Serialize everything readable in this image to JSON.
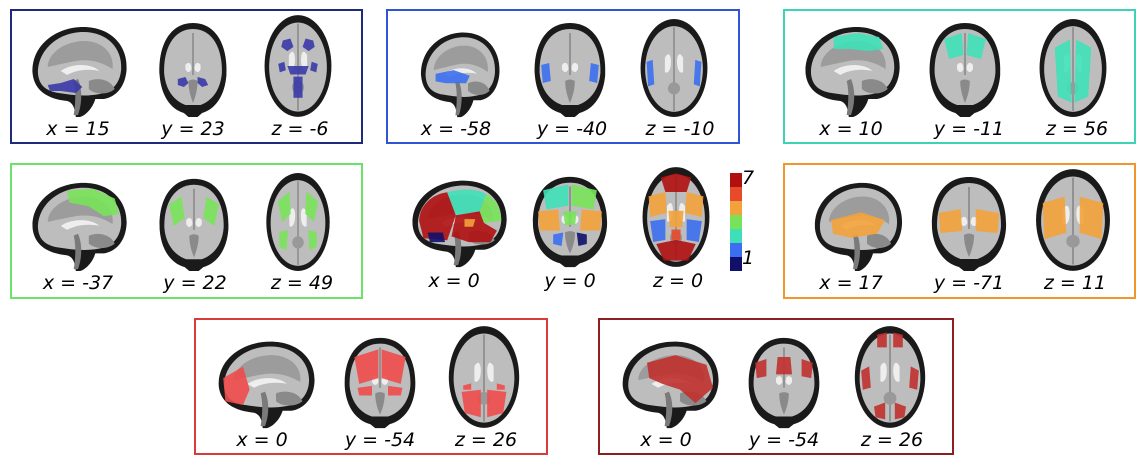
{
  "networks": [
    {
      "id": "n1",
      "color": "#1f2a7a",
      "blob": "#3a3aa8",
      "labels": [
        "x = 15",
        "y = 23",
        "z = -6"
      ]
    },
    {
      "id": "n2",
      "color": "#2f55d4",
      "blob": "#3b6ef0",
      "labels": [
        "x = -58",
        "y = -40",
        "z = -10"
      ]
    },
    {
      "id": "n3",
      "color": "#3fd3b5",
      "blob": "#3fe0b8",
      "labels": [
        "x = 10",
        "y = -11",
        "z = 56"
      ]
    },
    {
      "id": "n4",
      "color": "#6be36b",
      "blob": "#78e35a",
      "labels": [
        "x = -37",
        "y = 22",
        "z = 49"
      ]
    },
    {
      "id": "combined",
      "color": "none",
      "blob": "combined",
      "labels": [
        "x = 0",
        "y = 0",
        "z = 0"
      ]
    },
    {
      "id": "n5",
      "color": "#f0962a",
      "blob": "#f2a23a",
      "labels": [
        "x = 17",
        "y = -71",
        "z = 11"
      ]
    },
    {
      "id": "n6",
      "color": "#d93a3a",
      "blob": "#f04a4a",
      "labels": [
        "x = 0",
        "y = -54",
        "z = 26"
      ]
    },
    {
      "id": "n7",
      "color": "#8b1f22",
      "blob": "#c0302e",
      "labels": [
        "x = 0",
        "y = -54",
        "z = 26"
      ]
    }
  ],
  "colorbar": {
    "max": "7",
    "min": "1",
    "colors": [
      "#b01010",
      "#e84a2a",
      "#f2a23a",
      "#78e35a",
      "#3fe0b8",
      "#3b6ef0",
      "#10106a"
    ]
  }
}
